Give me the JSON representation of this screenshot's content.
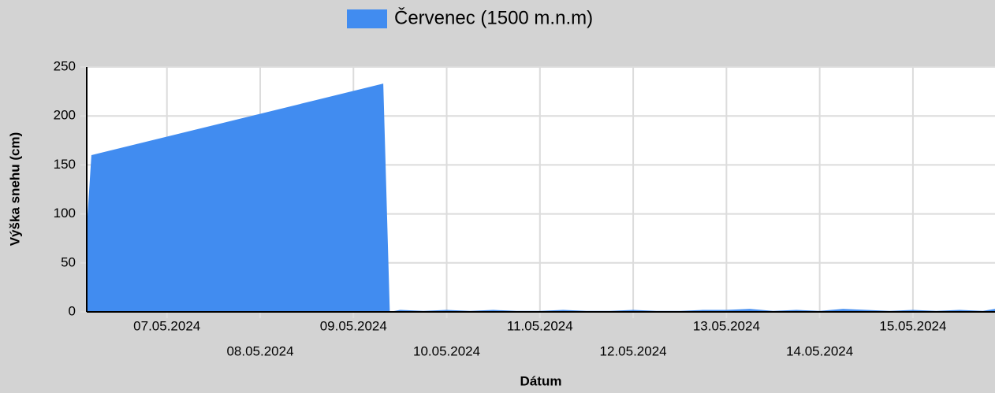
{
  "chart_data": {
    "type": "area",
    "legend_position": "top",
    "x_label": "Dátum",
    "y_label": "Výška snehu (cm)",
    "xlim": [
      6.14,
      15.88
    ],
    "xticks": [
      {
        "value": 7,
        "label": "07.05.2024"
      },
      {
        "value": 8,
        "label": "08.05.2024"
      },
      {
        "value": 9,
        "label": "09.05.2024"
      },
      {
        "value": 10,
        "label": "10.05.2024"
      },
      {
        "value": 11,
        "label": "11.05.2024"
      },
      {
        "value": 12,
        "label": "12.05.2024"
      },
      {
        "value": 13,
        "label": "13.05.2024"
      },
      {
        "value": 14,
        "label": "14.05.2024"
      },
      {
        "value": 15,
        "label": "15.05.2024"
      }
    ],
    "ylim": [
      0,
      250
    ],
    "yticks": [
      0,
      50,
      100,
      150,
      200,
      250
    ],
    "grid": true,
    "series": [
      {
        "name": "Červenec (1500 m.n.m)",
        "color": "#418cf0",
        "x": [
          6.14,
          6.19,
          9.32,
          9.39,
          9.5,
          9.75,
          10.0,
          10.25,
          10.5,
          10.75,
          11.0,
          11.25,
          11.5,
          11.75,
          12.0,
          12.25,
          12.5,
          12.75,
          13.0,
          13.25,
          13.5,
          13.75,
          14.0,
          14.25,
          14.5,
          14.75,
          15.0,
          15.25,
          15.5,
          15.75,
          15.88
        ],
        "values": [
          85,
          160,
          233,
          0,
          2,
          1,
          2,
          1,
          2,
          1,
          1,
          2,
          1,
          1,
          2,
          1,
          1,
          2,
          2,
          3,
          1,
          2,
          1,
          3,
          2,
          1,
          2,
          1,
          2,
          1,
          3
        ]
      }
    ]
  }
}
